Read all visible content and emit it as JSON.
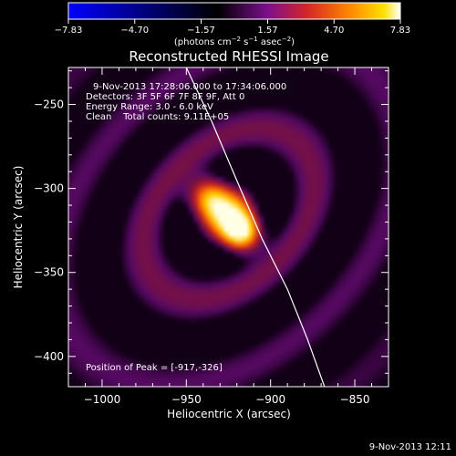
{
  "chart_data": {
    "type": "heatmap",
    "title": "Reconstructed RHESSI Image",
    "xlabel": "Heliocentric X (arcsec)",
    "ylabel": "Heliocentric Y (arcsec)",
    "xlim": [
      -1020,
      -830
    ],
    "ylim": [
      -418,
      -228
    ],
    "xticks": [
      -1000,
      -950,
      -900,
      -850
    ],
    "yticks": [
      -250,
      -300,
      -350,
      -400
    ],
    "xtick_labels": [
      "−1000",
      "−950",
      "−900",
      "−850"
    ],
    "ytick_labels": [
      "−250",
      "−300",
      "−350",
      "−400"
    ],
    "colorbar": {
      "ticks": [
        -7.83,
        -4.7,
        -1.57,
        1.57,
        4.7,
        7.83
      ],
      "labels": [
        "−7.83",
        "−4.70",
        "−1.57",
        "1.57",
        "4.70",
        "7.83"
      ],
      "range": [
        -7.83,
        7.83
      ],
      "unit_label": "(photons cm⁻² s⁻¹ asec⁻²)"
    },
    "annotations": [
      "9-Nov-2013 17:28:06.000 to 17:34:06.000",
      "Detectors: 3F 5F 6F 7F 8F 9F, Att 0",
      "Energy Range: 3.0 - 6.0 keV",
      "Clean    Total counts: 9.11E+05"
    ],
    "peak_label": "Position of Peak = [-917,-326]",
    "sources": [
      {
        "x": -917,
        "y": -326,
        "peak": 7.83
      },
      {
        "x": -937,
        "y": -305,
        "peak": 6.0
      }
    ],
    "limb_curve": [
      [
        -950,
        -228
      ],
      [
        -935,
        -260
      ],
      [
        -918,
        -300
      ],
      [
        -905,
        -330
      ],
      [
        -890,
        -360
      ],
      [
        -878,
        -390
      ],
      [
        -868,
        -418
      ]
    ],
    "footer": "9-Nov-2013 12:11"
  },
  "colors": {
    "background": "#000000",
    "axes": "#ffffff",
    "limb": "#ffffff",
    "colormap": [
      "#0000ff",
      "#000000",
      "#8a0b97",
      "#d92b2b",
      "#ff8000",
      "#ffd800",
      "#ffffff"
    ]
  }
}
